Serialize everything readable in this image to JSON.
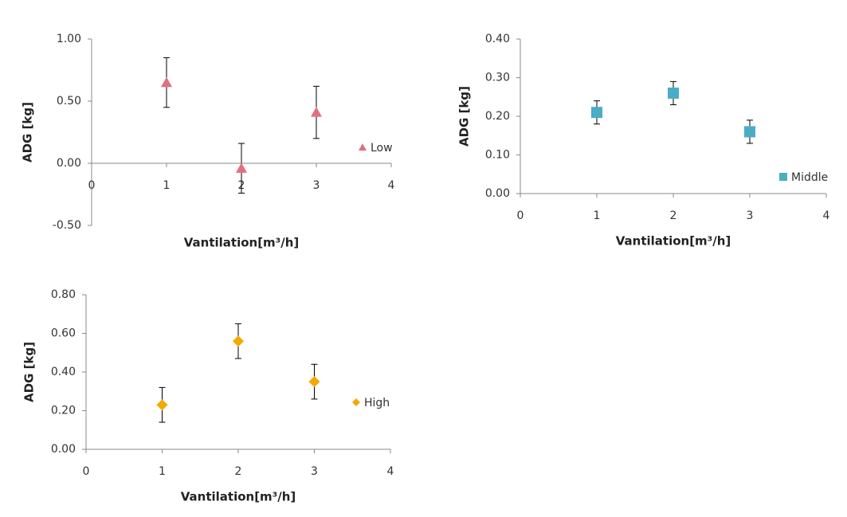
{
  "chart_data": [
    {
      "type": "scatter",
      "xlabel": "Vantilation[m³/h]",
      "ylabel": "ADG [kg]",
      "xlim": [
        0,
        4
      ],
      "xticks": [
        0,
        1,
        2,
        3,
        4
      ],
      "ylim": [
        -0.5,
        1
      ],
      "yticks": [
        {
          "value": -0.5,
          "label": "-0.50"
        },
        {
          "value": 0,
          "label": "0.00"
        },
        {
          "value": 0.5,
          "label": "0.50"
        },
        {
          "value": 1,
          "label": "1.00"
        }
      ],
      "series": [
        {
          "name": "Low",
          "color": "#e0707f",
          "marker": "triangle",
          "x": [
            1,
            2,
            3
          ],
          "values": [
            0.65,
            -0.04,
            0.41
          ],
          "errors": [
            0.2,
            0.2,
            0.21
          ]
        }
      ]
    },
    {
      "type": "scatter",
      "xlabel": "Vantilation[m³/h]",
      "ylabel": "ADG [kg]",
      "xlim": [
        0,
        4
      ],
      "xticks": [
        0,
        1,
        2,
        3,
        4
      ],
      "ylim": [
        0,
        0.4
      ],
      "yticks": [
        {
          "value": 0,
          "label": "0.00"
        },
        {
          "value": 0.1,
          "label": "0.10"
        },
        {
          "value": 0.2,
          "label": "0.20"
        },
        {
          "value": 0.3,
          "label": "0.30"
        },
        {
          "value": 0.4,
          "label": "0.40"
        }
      ],
      "series": [
        {
          "name": "Middle",
          "color": "#4bacc6",
          "marker": "square",
          "x": [
            1,
            2,
            3
          ],
          "values": [
            0.21,
            0.26,
            0.16
          ],
          "errors": [
            0.03,
            0.03,
            0.03
          ]
        }
      ]
    },
    {
      "type": "scatter",
      "xlabel": "Vantilation[m³/h]",
      "ylabel": "ADG [kg]",
      "xlim": [
        0,
        4
      ],
      "xticks": [
        0,
        1,
        2,
        3,
        4
      ],
      "ylim": [
        0,
        0.8
      ],
      "yticks": [
        {
          "value": 0,
          "label": "0.00"
        },
        {
          "value": 0.2,
          "label": "0.20"
        },
        {
          "value": 0.4,
          "label": "0.40"
        },
        {
          "value": 0.6,
          "label": "0.60"
        },
        {
          "value": 0.8,
          "label": "0.80"
        }
      ],
      "series": [
        {
          "name": "High",
          "color": "#f5a800",
          "marker": "diamond",
          "x": [
            1,
            2,
            3
          ],
          "values": [
            0.23,
            0.56,
            0.35
          ],
          "errors": [
            0.09,
            0.09,
            0.09
          ]
        }
      ]
    }
  ]
}
